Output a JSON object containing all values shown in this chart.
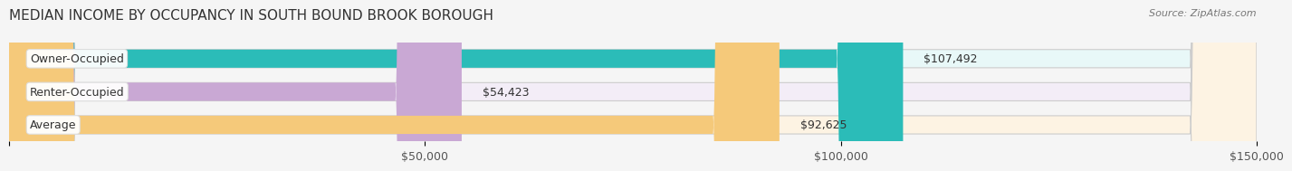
{
  "title": "MEDIAN INCOME BY OCCUPANCY IN SOUTH BOUND BROOK BOROUGH",
  "source": "Source: ZipAtlas.com",
  "categories": [
    "Owner-Occupied",
    "Renter-Occupied",
    "Average"
  ],
  "values": [
    107492,
    54423,
    92625
  ],
  "labels": [
    "$107,492",
    "$54,423",
    "$92,625"
  ],
  "bar_colors": [
    "#2bbcb8",
    "#c9a8d4",
    "#f5c97a"
  ],
  "bar_bg_colors": [
    "#e8f8f8",
    "#f3edf7",
    "#fdf3e3"
  ],
  "xlim": [
    0,
    150000
  ],
  "xticks": [
    0,
    50000,
    100000,
    150000
  ],
  "xtick_labels": [
    "",
    "$50,000",
    "$100,000",
    "$150,000"
  ],
  "title_fontsize": 11,
  "label_fontsize": 9,
  "tick_fontsize": 9,
  "bar_height": 0.55,
  "background_color": "#f5f5f5"
}
